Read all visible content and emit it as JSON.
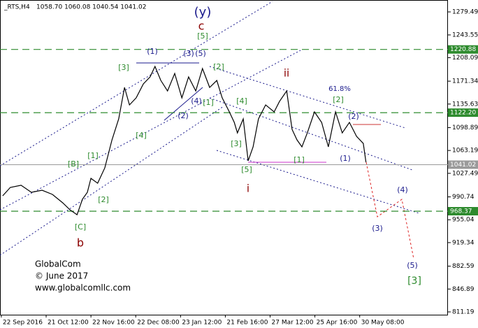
{
  "chart_data": {
    "type": "line",
    "symbol": "_RTS,H4",
    "ohlc": "1058.70 1060.08 1040.54 1041.02",
    "credits": [
      "GlobalCom",
      "© June 2017",
      "www.globalcomllc.com"
    ],
    "xlim": [
      -0.4,
      9.6
    ],
    "ylim": [
      806.8,
      1293.7
    ],
    "xticks": [
      {
        "value": -0.37,
        "label": "22 Sep 2016"
      },
      {
        "value": 0.63,
        "label": "21 Oct 12:00"
      },
      {
        "value": 1.63,
        "label": "22 Nov 16:00"
      },
      {
        "value": 2.63,
        "label": "22 Dec 08:00"
      },
      {
        "value": 3.63,
        "label": "23 Jan 12:00"
      },
      {
        "value": 4.63,
        "label": "21 Feb 16:00"
      },
      {
        "value": 5.63,
        "label": "27 Mar 12:00"
      },
      {
        "value": 6.63,
        "label": "25 Apr 16:00"
      },
      {
        "value": 7.63,
        "label": "30 May 08:00"
      }
    ],
    "yticks": [
      1279.49,
      1243.55,
      1208.09,
      1171.34,
      1135.63,
      1098.89,
      1063.19,
      1027.49,
      990.74,
      955.04,
      919.34,
      882.59,
      846.89,
      811.19
    ],
    "levels": [
      {
        "value": 1220.88,
        "color": "#2e8b2e"
      },
      {
        "value": 1122.2,
        "label": "1122.20",
        "color": "#2e8b2e"
      },
      {
        "value": 1041.02,
        "color": "#9a9a9a"
      },
      {
        "value": 968.37,
        "color": "#2e8b2e"
      }
    ],
    "series": [
      {
        "color": "#000000",
        "x": [
          -0.34,
          -0.17,
          0.07,
          0.3,
          0.54,
          0.77,
          1.0,
          1.16,
          1.32,
          1.44,
          1.55,
          1.63,
          1.78,
          1.94,
          2.1,
          2.25,
          2.38,
          2.49,
          2.64,
          2.8,
          2.95,
          3.06,
          3.19,
          3.34,
          3.5,
          3.66,
          3.81,
          3.97,
          4.12,
          4.28,
          4.44,
          4.56,
          4.72,
          4.83,
          4.9,
          5.03,
          5.14,
          5.25,
          5.37,
          5.53,
          5.72,
          5.84,
          6.0,
          6.12,
          6.23,
          6.34,
          6.46,
          6.62,
          6.78,
          6.93,
          7.09,
          7.24,
          7.4,
          7.56,
          7.71,
          7.77
        ],
        "values": [
          992.4,
          1005.5,
          1008.9,
          997.9,
          1001.1,
          994.6,
          981.5,
          970.6,
          962.9,
          987.0,
          997.9,
          1019.7,
          1012.1,
          1036.1,
          1079.7,
          1112.5,
          1161.6,
          1134.3,
          1145.3,
          1167.1,
          1178.0,
          1194.4,
          1172.5,
          1156.1,
          1183.4,
          1145.3,
          1178.0,
          1156.1,
          1191.1,
          1161.6,
          1172.5,
          1145.3,
          1123.4,
          1107.0,
          1090.6,
          1112.5,
          1047.0,
          1068.8,
          1112.5,
          1134.3,
          1123.4,
          1139.8,
          1156.1,
          1096.1,
          1079.7,
          1068.8,
          1090.6,
          1123.4,
          1107.0,
          1068.8,
          1123.4,
          1090.6,
          1107.0,
          1085.2,
          1074.2,
          1044.8
        ]
      }
    ],
    "annotations": [
      {
        "text": "(y)",
        "color": "#1a1a8c"
      },
      {
        "text": "c",
        "color": "#8b0000"
      },
      {
        "text": "[5]",
        "color": "#2e8b2e"
      },
      {
        "text": "(1)",
        "color": "#1a1a8c"
      },
      {
        "text": "(3)",
        "color": "#1a1a8c"
      },
      {
        "text": "(5)",
        "color": "#1a1a8c"
      },
      {
        "text": "[3]",
        "color": "#2e8b2e"
      },
      {
        "text": "[2]",
        "color": "#2e8b2e"
      },
      {
        "text": "ii",
        "color": "#8b0000"
      },
      {
        "text": "61.8%",
        "color": "#1a1a8c"
      },
      {
        "text": "[4]",
        "color": "#2e8b2e"
      },
      {
        "text": "[2]",
        "color": "#2e8b2e"
      },
      {
        "text": "(4)",
        "color": "#1a1a8c"
      },
      {
        "text": "[1]",
        "color": "#2e8b2e"
      },
      {
        "text": "(2)",
        "color": "#1a1a8c"
      },
      {
        "text": "(2)",
        "color": "#1a1a8c"
      },
      {
        "text": "[4]",
        "color": "#2e8b2e"
      },
      {
        "text": "[3]",
        "color": "#2e8b2e"
      },
      {
        "text": "[1]",
        "color": "#2e8b2e"
      },
      {
        "text": "(1)",
        "color": "#1a1a8c"
      },
      {
        "text": "[1]",
        "color": "#2e8b2e"
      },
      {
        "text": "[B]",
        "color": "#2e8b2e"
      },
      {
        "text": "[5]",
        "color": "#2e8b2e"
      },
      {
        "text": "i",
        "color": "#8b0000"
      },
      {
        "text": "(4)",
        "color": "#1a1a8c"
      },
      {
        "text": "[2]",
        "color": "#2e8b2e"
      },
      {
        "text": "(3)",
        "color": "#1a1a8c"
      },
      {
        "text": "[C]",
        "color": "#2e8b2e"
      },
      {
        "text": "b",
        "color": "#8b0000"
      },
      {
        "text": "(5)",
        "color": "#1a1a8c"
      },
      {
        "text": "[3]",
        "color": "#2e8b2e"
      }
    ]
  }
}
